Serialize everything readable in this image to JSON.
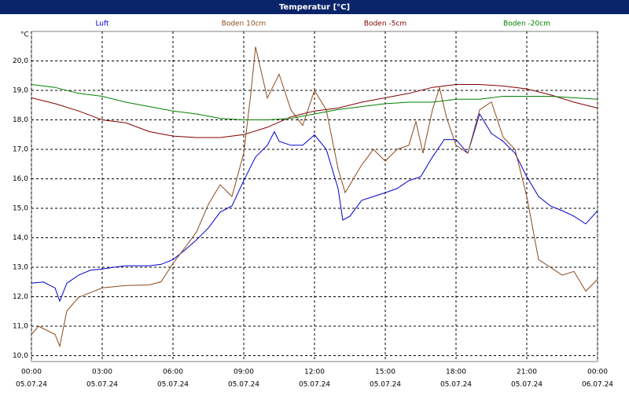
{
  "chart_data": {
    "type": "line",
    "title": "Temperatur [°C]",
    "y_label": "°C",
    "ylim": [
      9.8,
      21.0
    ],
    "yticks": [
      {
        "value": 10,
        "label": "10,0"
      },
      {
        "value": 11,
        "label": "11,0"
      },
      {
        "value": 12,
        "label": "12,0"
      },
      {
        "value": 13,
        "label": "13,0"
      },
      {
        "value": 14,
        "label": "14,0"
      },
      {
        "value": 15,
        "label": "15,0"
      },
      {
        "value": 16,
        "label": "16,0"
      },
      {
        "value": 17,
        "label": "17,0"
      },
      {
        "value": 18,
        "label": "18,0"
      },
      {
        "value": 19,
        "label": "19,0"
      },
      {
        "value": 20,
        "label": "20,0"
      }
    ],
    "xlim": [
      0,
      24
    ],
    "xticks": [
      {
        "value": 0,
        "label": "00:00"
      },
      {
        "value": 3,
        "label": "03:00"
      },
      {
        "value": 6,
        "label": "06:00"
      },
      {
        "value": 9,
        "label": "09:00"
      },
      {
        "value": 12,
        "label": "12:00"
      },
      {
        "value": 15,
        "label": "15:00"
      },
      {
        "value": 18,
        "label": "18:00"
      },
      {
        "value": 21,
        "label": "21:00"
      },
      {
        "value": 24,
        "label": "00:00"
      }
    ],
    "xtick_dates": [
      "05.07.24",
      "05.07.24",
      "05.07.24",
      "05.07.24",
      "05.07.24",
      "05.07.24",
      "05.07.24",
      "05.07.24",
      "06.07.24"
    ],
    "grid": true,
    "series": [
      {
        "name": "Luft",
        "color": "#0000cc",
        "x": [
          0,
          0.5,
          1,
          1.2,
          1.5,
          2,
          2.5,
          3,
          3.5,
          4,
          4.5,
          5,
          5.5,
          6,
          6.5,
          7,
          7.5,
          8,
          8.5,
          9,
          9.5,
          10,
          10.3,
          10.5,
          11,
          11.5,
          12,
          12.5,
          13,
          13.2,
          13.5,
          14,
          14.5,
          15,
          15.5,
          16,
          16.5,
          17,
          17.5,
          18,
          18.5,
          19,
          19.5,
          20,
          20.5,
          21,
          21.5,
          22,
          22.5,
          23,
          23.5,
          24
        ],
        "values": [
          12.46,
          12.5,
          12.3,
          11.85,
          12.46,
          12.73,
          12.9,
          12.94,
          13.0,
          13.05,
          13.05,
          13.05,
          13.1,
          13.26,
          13.58,
          13.93,
          14.33,
          14.87,
          15.08,
          15.94,
          16.74,
          17.14,
          17.6,
          17.27,
          17.14,
          17.14,
          17.49,
          17.0,
          15.67,
          14.6,
          14.73,
          15.27,
          15.4,
          15.53,
          15.67,
          15.94,
          16.07,
          16.74,
          17.33,
          17.33,
          16.87,
          18.2,
          17.54,
          17.27,
          16.87,
          16.07,
          15.4,
          15.08,
          14.92,
          14.73,
          14.47,
          14.92
        ]
      },
      {
        "name": "Boden 10cm",
        "color": "#8b4a1c",
        "x": [
          0,
          0.3,
          1,
          1.2,
          1.5,
          2,
          2.5,
          3,
          4,
          5,
          5.5,
          6,
          6.5,
          7,
          7.5,
          8,
          8.5,
          9,
          9.3,
          9.5,
          10,
          10.5,
          11,
          11.5,
          12,
          12.5,
          13,
          13.3,
          14,
          14.5,
          15,
          15.5,
          16,
          16.3,
          16.6,
          17,
          17.3,
          17.6,
          18,
          18.5,
          19,
          19.5,
          20,
          20.5,
          21,
          21.5,
          22,
          22.5,
          23,
          23.5,
          24
        ],
        "values": [
          10.72,
          11.0,
          10.72,
          10.32,
          11.52,
          11.98,
          12.14,
          12.3,
          12.38,
          12.4,
          12.51,
          13.13,
          13.66,
          14.2,
          15.13,
          15.8,
          15.4,
          16.87,
          18.88,
          20.48,
          18.74,
          19.55,
          18.34,
          17.81,
          19.0,
          18.34,
          16.34,
          15.53,
          16.47,
          17.0,
          16.6,
          17.0,
          17.14,
          17.94,
          16.87,
          18.34,
          19.09,
          18.07,
          17.14,
          16.87,
          18.34,
          18.61,
          17.41,
          17.0,
          15.4,
          13.26,
          13.0,
          12.73,
          12.86,
          12.19,
          12.59
        ]
      },
      {
        "name": "Boden -5cm",
        "color": "#800000",
        "x": [
          0,
          1,
          2,
          3,
          4,
          5,
          6,
          7,
          8,
          9,
          10,
          11,
          12,
          13,
          14,
          15,
          16,
          17,
          18,
          19,
          20,
          21,
          22,
          23,
          24
        ],
        "values": [
          18.75,
          18.55,
          18.3,
          18.0,
          17.9,
          17.6,
          17.45,
          17.4,
          17.4,
          17.5,
          17.75,
          18.1,
          18.3,
          18.4,
          18.6,
          18.75,
          18.9,
          19.1,
          19.2,
          19.2,
          19.15,
          19.05,
          18.85,
          18.6,
          18.4
        ]
      },
      {
        "name": "Boden -20cm",
        "color": "#008000",
        "x": [
          0,
          1,
          2,
          3,
          4,
          5,
          6,
          7,
          8,
          9,
          10,
          11,
          12,
          13,
          14,
          15,
          16,
          17,
          18,
          19,
          20,
          21,
          22,
          23,
          24
        ],
        "values": [
          19.2,
          19.1,
          18.9,
          18.8,
          18.6,
          18.45,
          18.3,
          18.2,
          18.05,
          18.0,
          18.0,
          18.05,
          18.2,
          18.35,
          18.45,
          18.55,
          18.6,
          18.6,
          18.7,
          18.7,
          18.8,
          18.8,
          18.8,
          18.75,
          18.7
        ]
      }
    ]
  }
}
